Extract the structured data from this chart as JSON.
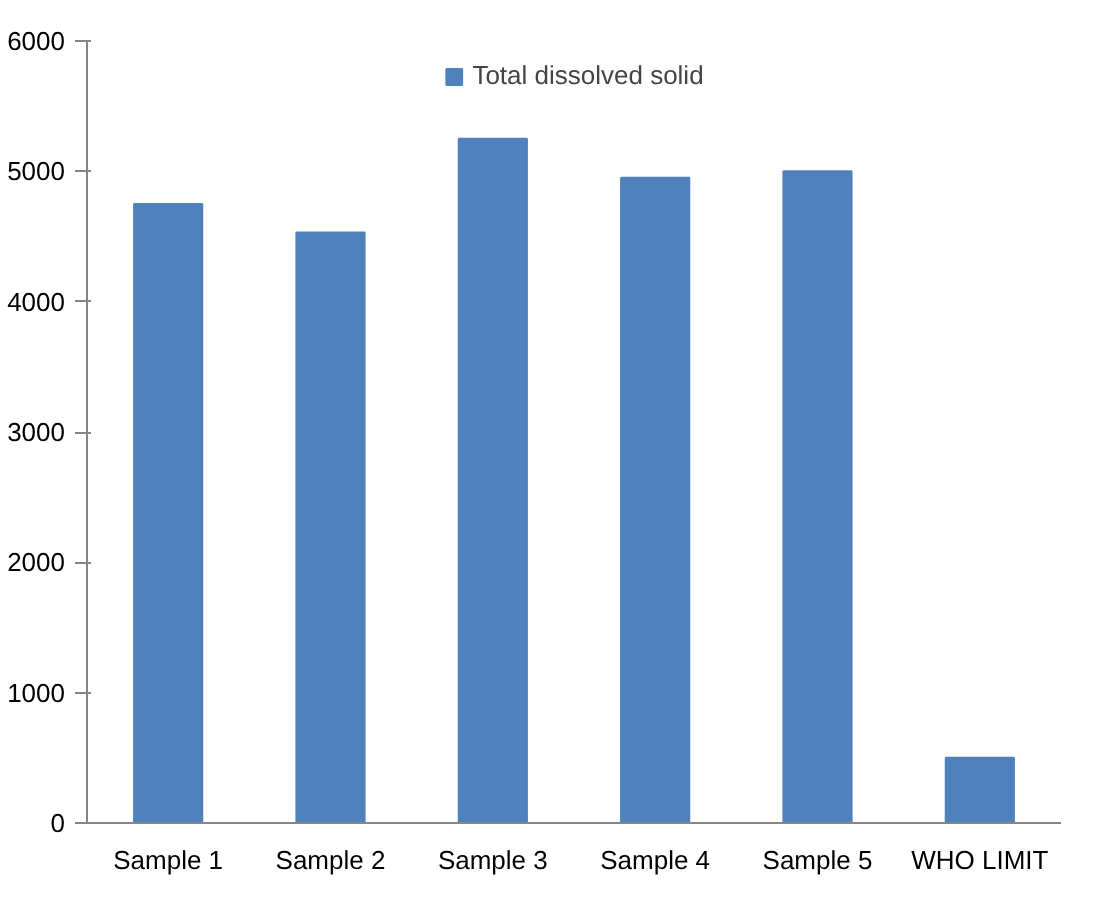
{
  "chart_data": {
    "type": "bar",
    "categories": [
      "Sample 1",
      "Sample 2",
      "Sample 3",
      "Sample 4",
      "Sample 5",
      "WHO LIMIT"
    ],
    "series": [
      {
        "name": "Total dissolved solid",
        "color": "#4f81bd",
        "values": [
          4750,
          4530,
          5250,
          4950,
          5000,
          500
        ]
      }
    ],
    "ylim": [
      0,
      6000
    ],
    "yticks": [
      0,
      1000,
      2000,
      3000,
      4000,
      5000,
      6000
    ],
    "grid": false,
    "legend": "top"
  }
}
